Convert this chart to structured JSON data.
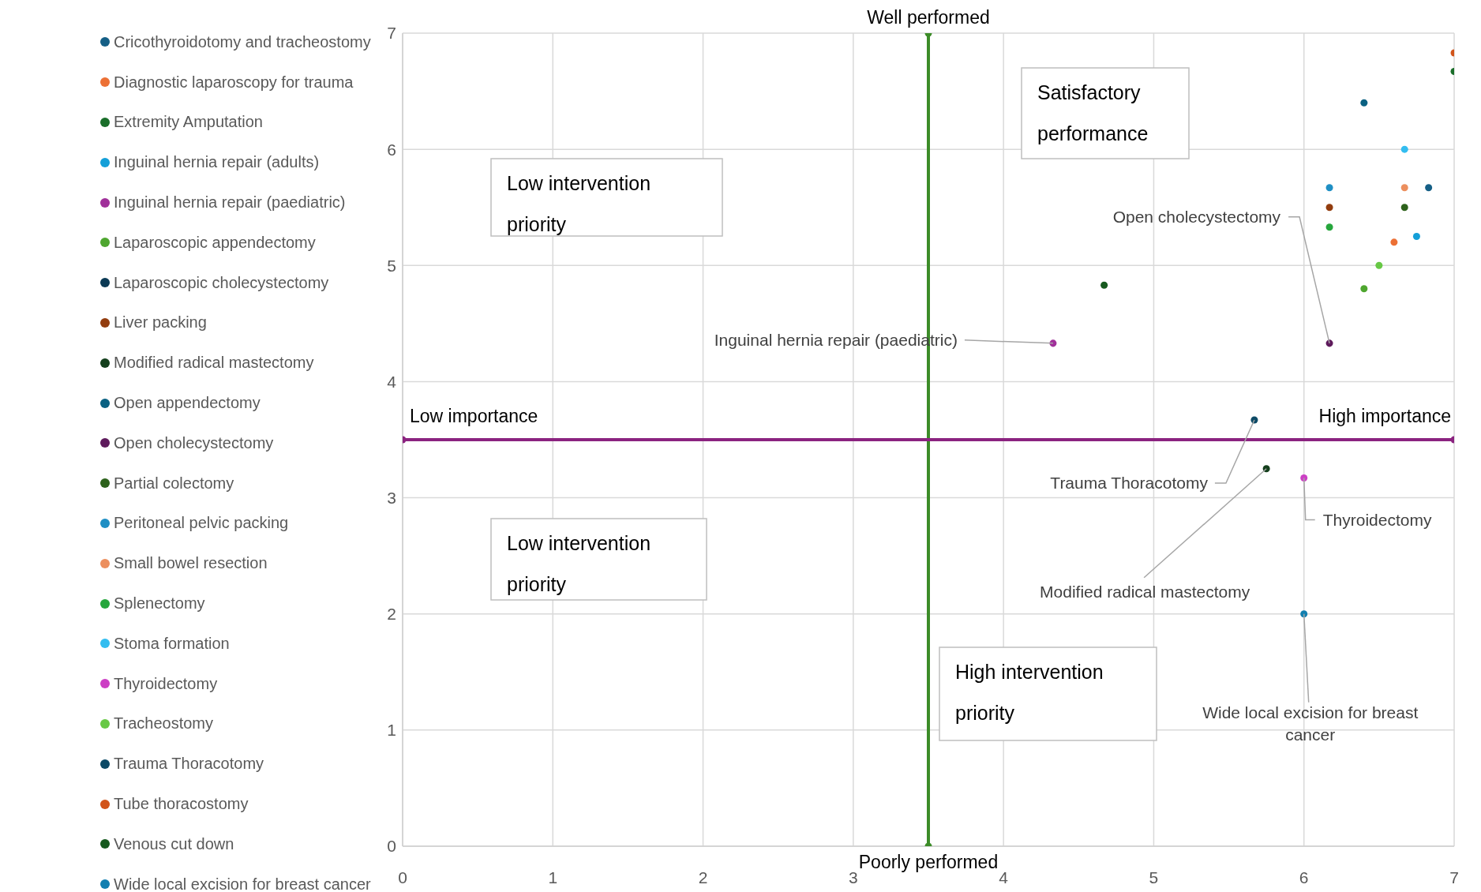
{
  "chart_data": {
    "type": "scatter",
    "xlim": [
      0,
      7
    ],
    "xticks": [
      0,
      1,
      2,
      3,
      4,
      5,
      6,
      7
    ],
    "ylim": [
      0,
      7
    ],
    "yticks": [
      0,
      1,
      2,
      3,
      4,
      5,
      6,
      7
    ],
    "grid": true,
    "legend": "left",
    "marker": "circle",
    "series": [
      {
        "name": "Cricothyroidotomy and tracheostomy",
        "color": "#155f86",
        "x": [
          6.83
        ],
        "values": [
          5.67
        ]
      },
      {
        "name": "Diagnostic laparoscopy for trauma",
        "color": "#ec7035",
        "x": [
          6.6
        ],
        "values": [
          5.2
        ]
      },
      {
        "name": "Extremity Amputation",
        "color": "#1a6e2a",
        "x": [
          7
        ],
        "values": [
          6.67
        ]
      },
      {
        "name": "Inguinal hernia repair (adults)",
        "color": "#149fd8",
        "x": [
          6.75
        ],
        "values": [
          5.25
        ]
      },
      {
        "name": "Inguinal hernia repair (paediatric)",
        "color": "#a0309a",
        "x": [
          4.33
        ],
        "values": [
          4.33
        ]
      },
      {
        "name": "Laparoscopic appendectomy",
        "color": "#4ea62f",
        "x": [
          6.4
        ],
        "values": [
          4.8
        ]
      },
      {
        "name": "Laparoscopic cholecystectomy",
        "color": "#0b3a55",
        "x": [
          null
        ],
        "values": [
          null
        ]
      },
      {
        "name": "Liver packing",
        "color": "#923c0e",
        "x": [
          6.17
        ],
        "values": [
          5.5
        ]
      },
      {
        "name": "Modified radical mastectomy",
        "color": "#143f1c",
        "x": [
          5.75
        ],
        "values": [
          3.25
        ]
      },
      {
        "name": "Open appendectomy",
        "color": "#0a6182",
        "x": [
          6.4
        ],
        "values": [
          6.4
        ]
      },
      {
        "name": "Open cholecystectomy",
        "color": "#5e1a5c",
        "x": [
          6.17
        ],
        "values": [
          4.33
        ]
      },
      {
        "name": "Partial colectomy",
        "color": "#2d621c",
        "x": [
          6.67
        ],
        "values": [
          5.5
        ]
      },
      {
        "name": "Peritoneal pelvic packing",
        "color": "#1f8fc4",
        "x": [
          6.17
        ],
        "values": [
          5.67
        ]
      },
      {
        "name": "Small bowel resection",
        "color": "#ec8f5e",
        "x": [
          6.67
        ],
        "values": [
          5.67
        ]
      },
      {
        "name": "Splenectomy",
        "color": "#26a63c",
        "x": [
          6.17
        ],
        "values": [
          5.33
        ]
      },
      {
        "name": "Stoma formation",
        "color": "#33bdf0",
        "x": [
          6.67
        ],
        "values": [
          6.0
        ]
      },
      {
        "name": "Thyroidectomy",
        "color": "#cc3fc4",
        "x": [
          6.0
        ],
        "values": [
          3.17
        ]
      },
      {
        "name": "Tracheostomy",
        "color": "#67c845",
        "x": [
          6.5
        ],
        "values": [
          5.0
        ]
      },
      {
        "name": "Trauma Thoracotomy",
        "color": "#0d4a66",
        "x": [
          5.67
        ],
        "values": [
          3.67
        ]
      },
      {
        "name": "Tube thoracostomy",
        "color": "#d1541a",
        "x": [
          7
        ],
        "values": [
          6.83
        ]
      },
      {
        "name": "Venous cut down",
        "color": "#175a1f",
        "x": [
          4.67
        ],
        "values": [
          4.83
        ]
      },
      {
        "name": "Wide local excision for breast cancer",
        "color": "#127fb0",
        "x": [
          6.0
        ],
        "values": [
          2.0
        ]
      },
      {
        "type": "line",
        "color": "#3c8c28",
        "x": [
          3.5,
          3.5
        ],
        "values": [
          0,
          7
        ]
      },
      {
        "type": "line",
        "color": "#8b2380",
        "x": [
          0,
          7
        ],
        "values": [
          3.5,
          3.5
        ]
      }
    ],
    "annotations": [
      {
        "text": "Well performed",
        "x": 3.5,
        "y": 7
      },
      {
        "text": "Poorly performed",
        "x": 3.5,
        "y": 0
      },
      {
        "text": "Low importance",
        "x": 0,
        "y": 3.5
      },
      {
        "text": "High importance",
        "x": 7,
        "y": 3.5
      },
      "Satisfactory performance",
      "Low intervention priority",
      "Low intervention priority",
      "High intervention priority",
      {
        "text": "Open cholecystectomy",
        "x": 6.17,
        "y": 4.33
      },
      {
        "text": "Inguinal hernia repair (paediatric)",
        "x": 4.33,
        "y": 4.33
      },
      {
        "text": "Trauma Thoracotomy",
        "x": 5.67,
        "y": 3.67
      },
      {
        "text": "Modified radical mastectomy",
        "x": 5.75,
        "y": 3.25
      },
      {
        "text": "Thyroidectomy",
        "x": 6.0,
        "y": 3.17
      },
      {
        "text": "Wide local excision for breast cancer",
        "x": 6.0,
        "y": 2.0
      }
    ]
  }
}
